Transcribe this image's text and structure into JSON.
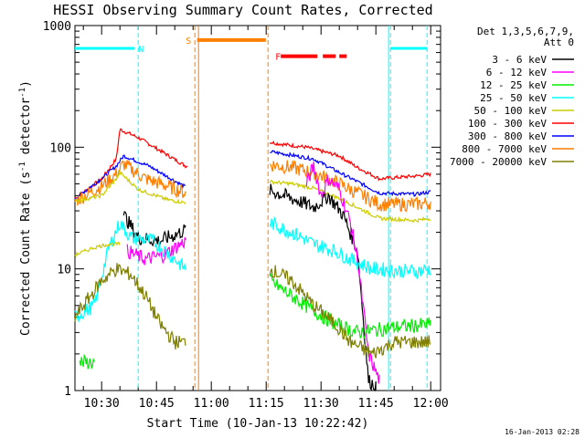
{
  "chart_data": {
    "type": "line",
    "title": "HESSI Observing Summary Count Rates, Corrected",
    "xlabel": "Start Time (10-Jan-13 10:22:42)",
    "ylabel_main": "Corrected Count Rate (s",
    "ylabel_sup1": "-1",
    "ylabel_mid": " detector",
    "ylabel_sup2": "-1",
    "ylabel_end": ")",
    "y_scale": "log",
    "ylim": [
      1,
      1000
    ],
    "xlim_minutes": [
      22.7,
      122.7
    ],
    "x_ticks": [
      {
        "label": "10:30",
        "t": 30
      },
      {
        "label": "10:45",
        "t": 45
      },
      {
        "label": "11:00",
        "t": 60
      },
      {
        "label": "11:15",
        "t": 75
      },
      {
        "label": "11:30",
        "t": 90
      },
      {
        "label": "11:45",
        "t": 105
      },
      {
        "label": "12:00",
        "t": 120
      }
    ],
    "y_ticks": [
      {
        "label": "1",
        "v": 1
      },
      {
        "label": "10",
        "v": 10
      },
      {
        "label": "100",
        "v": 100
      },
      {
        "label": "1000",
        "v": 1000
      }
    ],
    "legend": {
      "placement": "right",
      "header1": "Det 1,3,5,6,7,9,",
      "header2": "Att 0",
      "entries": [
        {
          "label": "3 - 6 keV",
          "color": "#000000"
        },
        {
          "label": "6 - 12 keV",
          "color": "#ff00ff"
        },
        {
          "label": "12 - 25 keV",
          "color": "#00ee00"
        },
        {
          "label": "25 - 50 keV",
          "color": "#00ffff"
        },
        {
          "label": "50 - 100 keV",
          "color": "#cccc00"
        },
        {
          "label": "100 - 300 keV",
          "color": "#ff0000"
        },
        {
          "label": "300 - 800 keV",
          "color": "#0000ff"
        },
        {
          "label": "800 - 7000 keV",
          "color": "#ff7f00"
        },
        {
          "label": "7000 - 20000 keV",
          "color": "#808000"
        }
      ]
    },
    "flags": [
      {
        "letter": "N",
        "color": "#00ffff",
        "t0": 22.7,
        "t1": 40,
        "level": 650,
        "vlines": [
          40,
          109,
          119
        ]
      },
      {
        "letter": "S",
        "color": "#ff7f00",
        "t0": 55.5,
        "t1": 75.5,
        "level": 760,
        "vlines": [
          55.5,
          75.5
        ]
      },
      {
        "letter": "F",
        "color": "#ff0000",
        "t0": 79,
        "t1": 97,
        "level": 560
      }
    ],
    "segments": [
      {
        "channel": "100 - 300 keV",
        "color": "#ff0000",
        "a": [
          [
            22.7,
            38
          ],
          [
            30,
            55
          ],
          [
            34,
            80
          ],
          [
            35,
            140
          ],
          [
            40,
            120
          ],
          [
            47,
            90
          ],
          [
            53,
            70
          ],
          [
            53.5,
            70
          ]
        ],
        "b": [
          [
            76,
            110
          ],
          [
            80,
            105
          ],
          [
            86,
            100
          ],
          [
            95,
            85
          ],
          [
            100,
            68
          ],
          [
            106,
            55
          ],
          [
            116,
            58
          ],
          [
            120,
            60
          ]
        ]
      },
      {
        "channel": "300 - 800 keV",
        "color": "#0000ff",
        "a": [
          [
            22.7,
            38
          ],
          [
            30,
            55
          ],
          [
            34,
            70
          ],
          [
            36,
            85
          ],
          [
            43,
            70
          ],
          [
            49,
            55
          ],
          [
            53,
            47
          ]
        ],
        "b": [
          [
            76,
            92
          ],
          [
            82,
            86
          ],
          [
            88,
            80
          ],
          [
            95,
            62
          ],
          [
            100,
            52
          ],
          [
            106,
            42
          ],
          [
            116,
            41
          ],
          [
            120,
            43
          ]
        ]
      },
      {
        "channel": "800 - 7000 keV",
        "color": "#ff7f00",
        "a": [
          [
            22.7,
            36
          ],
          [
            30,
            48
          ],
          [
            34,
            60
          ],
          [
            36,
            73
          ],
          [
            42,
            55
          ],
          [
            48,
            48
          ],
          [
            53,
            42
          ]
        ],
        "b": [
          [
            76,
            72
          ],
          [
            82,
            68
          ],
          [
            88,
            62
          ],
          [
            95,
            50
          ],
          [
            100,
            42
          ],
          [
            106,
            34
          ],
          [
            116,
            34
          ],
          [
            120,
            35
          ]
        ]
      },
      {
        "channel": "50 - 100 keV",
        "color": "#cccc00",
        "a": [
          [
            22.7,
            36
          ],
          [
            30,
            40
          ],
          [
            34,
            55
          ],
          [
            35,
            62
          ],
          [
            40,
            45
          ],
          [
            48,
            37
          ],
          [
            53,
            35
          ]
        ],
        "b": [
          [
            76,
            52
          ],
          [
            82,
            50
          ],
          [
            88,
            46
          ],
          [
            95,
            38
          ],
          [
            100,
            32
          ],
          [
            106,
            26
          ],
          [
            116,
            25
          ],
          [
            120,
            26
          ]
        ]
      },
      {
        "channel": "3 - 6 keV",
        "color": "#000000",
        "a": [
          [
            36,
            28
          ],
          [
            40,
            18
          ],
          [
            46,
            17
          ],
          [
            50,
            19
          ],
          [
            53,
            21
          ]
        ],
        "b": [
          [
            76,
            44
          ],
          [
            80,
            40
          ],
          [
            84,
            36
          ],
          [
            88,
            32
          ],
          [
            92,
            40
          ],
          [
            96,
            28
          ],
          [
            100,
            14
          ],
          [
            103,
            1.2
          ],
          [
            105,
            1.1
          ]
        ]
      },
      {
        "channel": "6 - 12 keV",
        "color": "#ff00ff",
        "a": [
          [
            37,
            14
          ],
          [
            42,
            12
          ],
          [
            47,
            13
          ],
          [
            53,
            17
          ]
        ],
        "b": [
          [
            86,
            50
          ],
          [
            88,
            70
          ],
          [
            90,
            40
          ],
          [
            92,
            55
          ],
          [
            95,
            45
          ],
          [
            98,
            24
          ],
          [
            100,
            12
          ],
          [
            103,
            2
          ],
          [
            106,
            1.2
          ]
        ]
      },
      {
        "channel": "25 - 50 keV",
        "color": "#00ffff",
        "a": [
          [
            22.7,
            4
          ],
          [
            28,
            5
          ],
          [
            32,
            15
          ],
          [
            35,
            24
          ],
          [
            38,
            18
          ],
          [
            44,
            17
          ],
          [
            50,
            12
          ],
          [
            53,
            10
          ]
        ],
        "b": [
          [
            76,
            24
          ],
          [
            82,
            20
          ],
          [
            88,
            16
          ],
          [
            94,
            14
          ],
          [
            98,
            12
          ],
          [
            104,
            10
          ],
          [
            116,
            9.5
          ],
          [
            120,
            10
          ]
        ]
      },
      {
        "channel": "12 - 25 keV",
        "color": "#00ee00",
        "a": [
          [
            24,
            1.7
          ],
          [
            28,
            1.7
          ]
        ],
        "b": [
          [
            76,
            8
          ],
          [
            82,
            6
          ],
          [
            88,
            4.5
          ],
          [
            94,
            3.5
          ],
          [
            100,
            3
          ],
          [
            110,
            3.3
          ],
          [
            120,
            3.5
          ]
        ]
      },
      {
        "channel": "7000 - 20000 keV",
        "color": "#808000",
        "a": [
          [
            22.7,
            4
          ],
          [
            30,
            8
          ],
          [
            34,
            10
          ],
          [
            38,
            9
          ],
          [
            42,
            6
          ],
          [
            46,
            3.5
          ],
          [
            50,
            2.5
          ],
          [
            53,
            2.5
          ]
        ],
        "b": [
          [
            76,
            10
          ],
          [
            82,
            8
          ],
          [
            88,
            5
          ],
          [
            94,
            3.5
          ],
          [
            98,
            2.5
          ],
          [
            104,
            2
          ],
          [
            110,
            2.5
          ],
          [
            120,
            2.5
          ]
        ]
      },
      {
        "channel": "50 - 100 keV (low)",
        "color": "#cccc00",
        "a": [
          [
            22.7,
            13
          ],
          [
            28,
            15
          ],
          [
            32,
            16
          ],
          [
            35,
            16
          ]
        ],
        "b": []
      }
    ],
    "footer_date": "16-Jan-2013 02:28"
  }
}
